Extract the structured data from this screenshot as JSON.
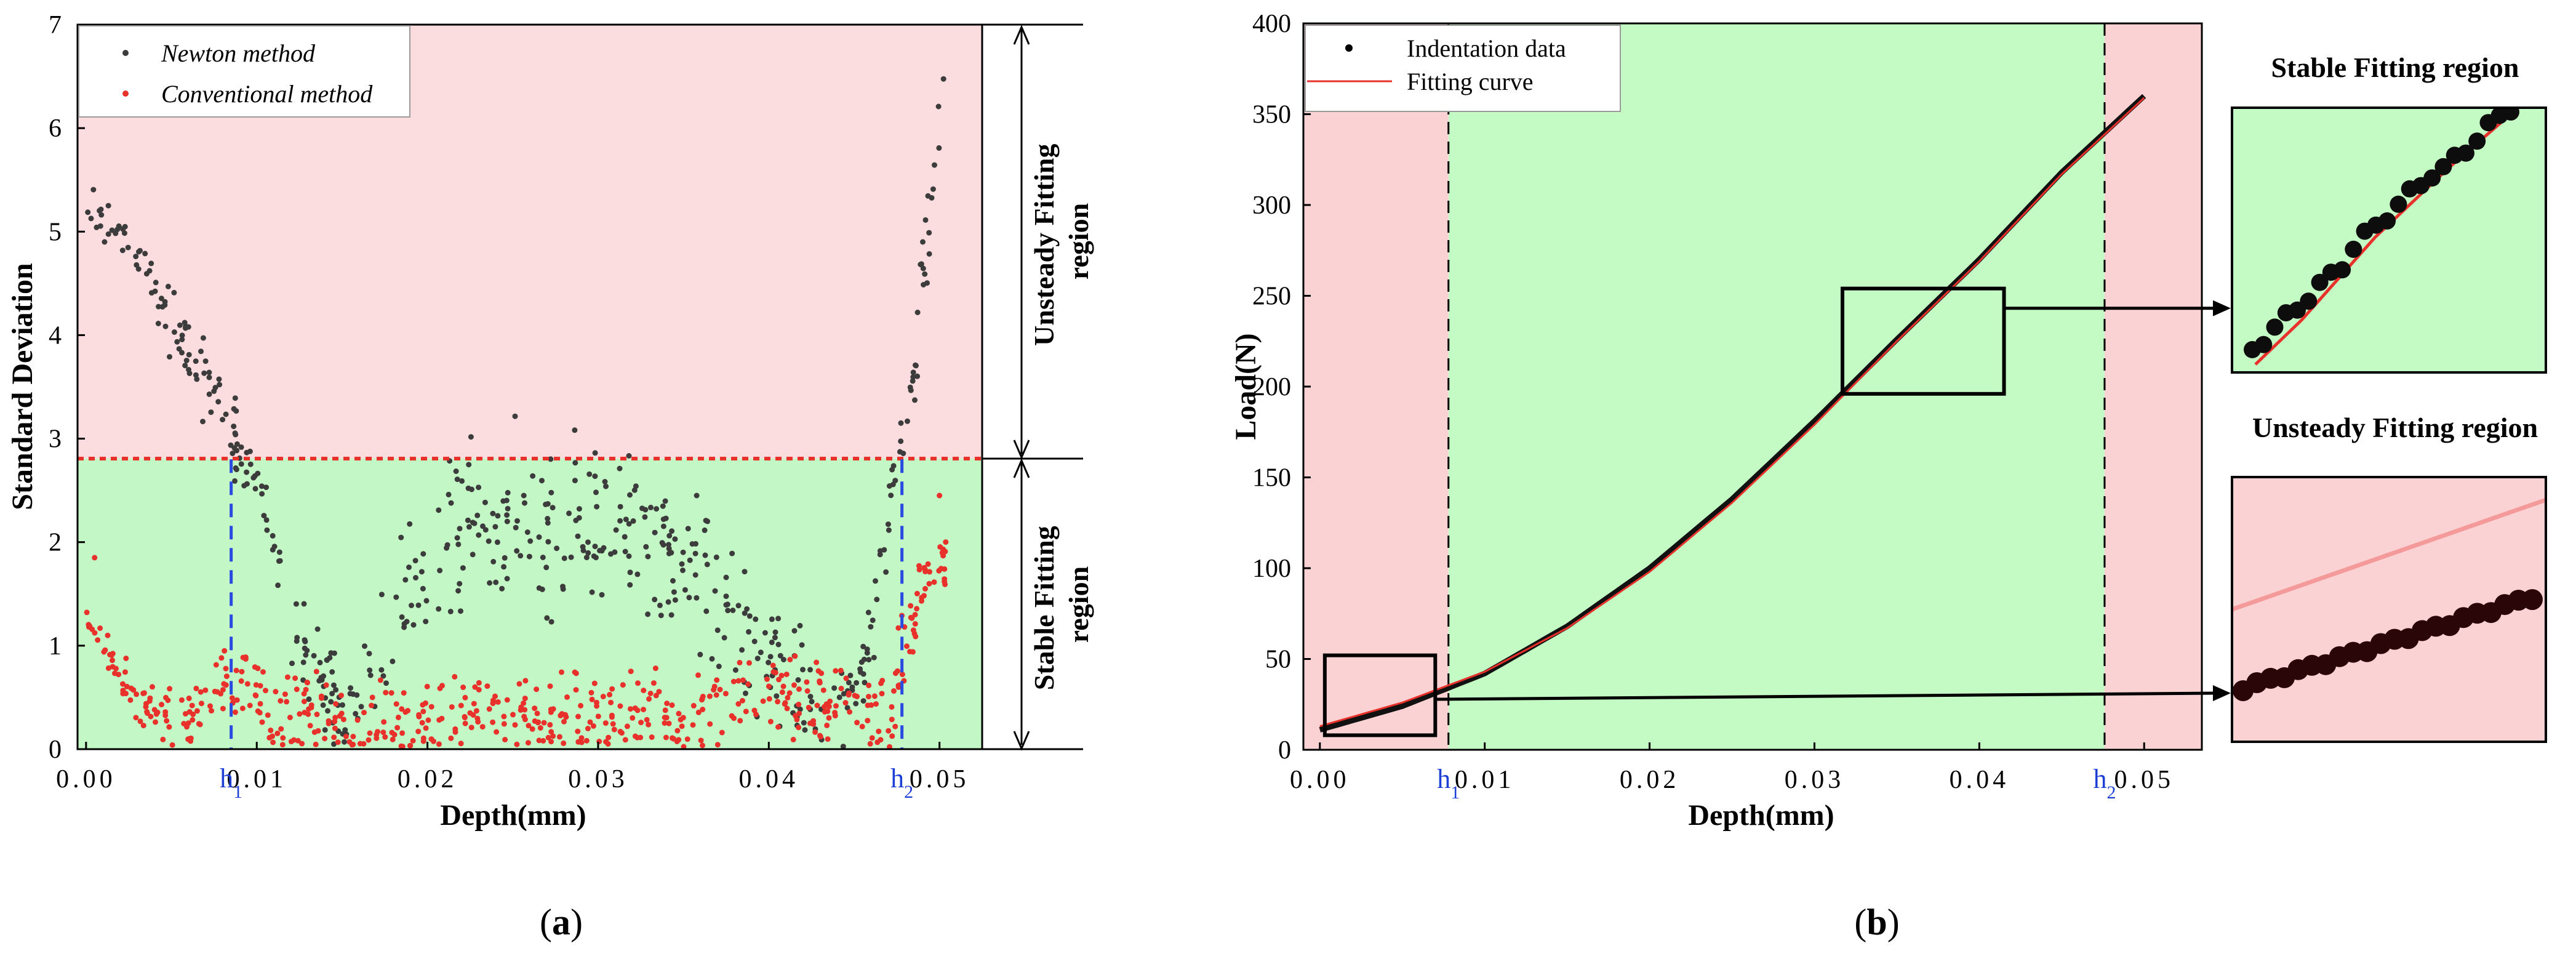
{
  "chart_data": [
    {
      "panel": "(a)",
      "type": "scatter",
      "xlabel": "Depth(mm)",
      "ylabel": "Standard Deviation",
      "xlim": [
        -0.0005,
        0.0525
      ],
      "ylim": [
        0,
        7
      ],
      "xticks": [
        0.0,
        0.01,
        0.02,
        0.03,
        0.04,
        0.05
      ],
      "xtick_labels": [
        "0.00",
        "0.01",
        "0.02",
        "0.03",
        "0.04",
        "0.05"
      ],
      "yticks": [
        0,
        1,
        2,
        3,
        4,
        5,
        6,
        7
      ],
      "threshold": 2.8,
      "h1": 0.0085,
      "h2": 0.0478,
      "h1_label": "h1",
      "h2_label": "h2",
      "unsteady_region_label": [
        "Unsteady Fitting",
        "region"
      ],
      "stable_region_label": [
        "Stable Fitting",
        "region"
      ],
      "legend": [
        "Newton method",
        "Conventional method"
      ],
      "series": [
        {
          "name": "Newton method",
          "color": "#3c3c3c",
          "trend": [
            [
              0.0,
              5.3
            ],
            [
              0.002,
              5.0
            ],
            [
              0.004,
              4.5
            ],
            [
              0.006,
              3.8
            ],
            [
              0.008,
              3.3
            ],
            [
              0.0095,
              2.7
            ],
            [
              0.011,
              1.9
            ],
            [
              0.013,
              0.8
            ],
            [
              0.0155,
              0.3
            ],
            [
              0.018,
              1.2
            ],
            [
              0.02,
              1.8
            ],
            [
              0.022,
              2.2
            ],
            [
              0.026,
              2.3
            ],
            [
              0.03,
              2.1
            ],
            [
              0.034,
              2.0
            ],
            [
              0.037,
              1.5
            ],
            [
              0.04,
              0.9
            ],
            [
              0.043,
              0.4
            ],
            [
              0.045,
              0.5
            ],
            [
              0.0465,
              1.6
            ],
            [
              0.0475,
              2.8
            ],
            [
              0.0485,
              3.6
            ],
            [
              0.0495,
              5.2
            ],
            [
              0.05,
              6.1
            ]
          ],
          "spread": [
            [
              0.0,
              0.15
            ],
            [
              0.006,
              0.3
            ],
            [
              0.011,
              0.3
            ],
            [
              0.016,
              0.35
            ],
            [
              0.02,
              0.6
            ],
            [
              0.03,
              0.6
            ],
            [
              0.04,
              0.45
            ],
            [
              0.045,
              0.3
            ],
            [
              0.048,
              0.35
            ],
            [
              0.05,
              0.4
            ]
          ]
        },
        {
          "name": "Conventional method",
          "color": "#e8312a",
          "trend": [
            [
              0.0,
              1.25
            ],
            [
              0.0015,
              0.9
            ],
            [
              0.003,
              0.4
            ],
            [
              0.006,
              0.25
            ],
            [
              0.008,
              0.7
            ],
            [
              0.0095,
              0.6
            ],
            [
              0.011,
              0.3
            ],
            [
              0.015,
              0.2
            ],
            [
              0.02,
              0.3
            ],
            [
              0.025,
              0.35
            ],
            [
              0.03,
              0.3
            ],
            [
              0.035,
              0.35
            ],
            [
              0.04,
              0.55
            ],
            [
              0.045,
              0.4
            ],
            [
              0.047,
              0.3
            ],
            [
              0.048,
              1.0
            ],
            [
              0.049,
              1.6
            ],
            [
              0.05,
              1.7
            ]
          ],
          "spread": [
            [
              0.0,
              0.1
            ],
            [
              0.005,
              0.2
            ],
            [
              0.01,
              0.3
            ],
            [
              0.02,
              0.3
            ],
            [
              0.03,
              0.3
            ],
            [
              0.04,
              0.3
            ],
            [
              0.048,
              0.35
            ],
            [
              0.05,
              0.25
            ]
          ],
          "outliers": [
            [
              0.0005,
              1.85
            ],
            [
              0.0135,
              0.75
            ],
            [
              0.05,
              2.45
            ]
          ]
        }
      ]
    },
    {
      "panel": "(b)",
      "type": "line",
      "xlabel": "Depth(mm)",
      "ylabel": "Load(N)",
      "xlim": [
        -0.001,
        0.0535
      ],
      "ylim": [
        0,
        400
      ],
      "xticks": [
        0.0,
        0.01,
        0.02,
        0.03,
        0.04,
        0.05
      ],
      "xtick_labels": [
        "0.00",
        "0.01",
        "0.02",
        "0.03",
        "0.04",
        "0.05"
      ],
      "yticks": [
        0,
        50,
        100,
        150,
        200,
        250,
        300,
        350,
        400
      ],
      "h1": 0.0078,
      "h2": 0.0476,
      "h1_label": "h1",
      "h2_label": "h2",
      "legend": [
        "Indentation data",
        "Fitting curve"
      ],
      "series": [
        {
          "name": "Indentation data",
          "color": "#000000",
          "x": [
            0.0,
            0.005,
            0.01,
            0.015,
            0.02,
            0.025,
            0.03,
            0.035,
            0.04,
            0.045,
            0.05
          ],
          "y": [
            11,
            24,
            42,
            68,
            100,
            138,
            181,
            226,
            270,
            318,
            360
          ]
        },
        {
          "name": "Fitting curve",
          "color": "#e8312a",
          "x": [
            0.0,
            0.005,
            0.01,
            0.015,
            0.02,
            0.025,
            0.03,
            0.035,
            0.04,
            0.045,
            0.05
          ],
          "y": [
            13,
            26,
            43,
            67,
            98,
            136,
            179,
            225,
            269,
            317,
            359
          ]
        }
      ],
      "zoom_boxes": [
        {
          "name": "stable",
          "x": [
            0.0317,
            0.0415
          ],
          "y": [
            196,
            254
          ]
        },
        {
          "name": "unsteady",
          "x": [
            0.0003,
            0.007
          ],
          "y": [
            8,
            52
          ]
        }
      ],
      "inset_titles": [
        "Stable Fitting region",
        "Unsteady Fitting region"
      ]
    }
  ],
  "panel_labels": [
    "(a)",
    "(b)"
  ]
}
